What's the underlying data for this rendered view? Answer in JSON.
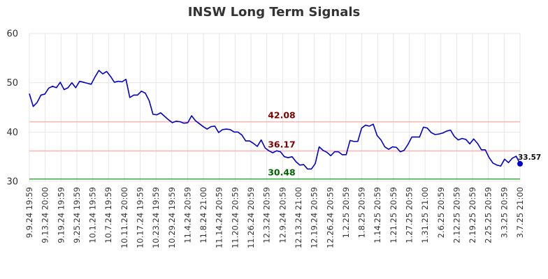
{
  "chart_data": {
    "type": "line",
    "title": "INSW Long Term Signals",
    "xlabel": "",
    "ylabel": "",
    "ylim": [
      30,
      60
    ],
    "yticks": [
      30,
      40,
      50,
      60
    ],
    "grid": true,
    "xtick_labels": [
      "9.9.24 19:59",
      "9.13.24 20:00",
      "9.19.24 19:59",
      "9.25.24 19:59",
      "10.1.24 19:59",
      "10.7.24 19:59",
      "10.11.24 20:00",
      "10.17.24 19:59",
      "10.23.24 19:59",
      "10.29.24 19:59",
      "11.4.24 20:59",
      "11.8.24 21:00",
      "11.14.24 20:59",
      "11.20.24 20:59",
      "11.26.24 20:59",
      "12.3.24 20:59",
      "12.9.24 20:59",
      "12.13.24 21:00",
      "12.19.24 20:59",
      "12.26.24 20:59",
      "1.2.25 20:59",
      "1.8.25 20:59",
      "1.14.25 20:59",
      "1.21.25 20:59",
      "1.27.25 20:59",
      "1.31.25 21:00",
      "2.6.25 20:59",
      "2.12.25 20:59",
      "2.19.25 20:59",
      "2.25.25 20:59",
      "3.3.25 20:59",
      "3.7.25 21:00"
    ],
    "series": [
      {
        "color": "#0000cc",
        "values": [
          47.8,
          45.2,
          46.0,
          47.5,
          47.7,
          48.9,
          49.3,
          49.0,
          50.1,
          48.6,
          49.0,
          50.0,
          49.0,
          50.3,
          50.1,
          49.9,
          49.7,
          51.2,
          52.5,
          51.8,
          52.3,
          51.3,
          50.1,
          50.3,
          50.2,
          50.7,
          47.0,
          47.5,
          47.5,
          48.3,
          47.9,
          46.4,
          43.6,
          43.5,
          43.9,
          43.2,
          42.5,
          41.9,
          42.2,
          42.1,
          41.8,
          41.9,
          43.3,
          42.3,
          41.7,
          41.1,
          40.6,
          41.1,
          41.2,
          39.9,
          40.5,
          40.6,
          40.5,
          40.0,
          40.0,
          39.4,
          38.2,
          38.2,
          37.7,
          37.1,
          38.4,
          36.8,
          36.2,
          35.8,
          36.2,
          36.0,
          35.0,
          34.8,
          35.0,
          34.0,
          33.3,
          33.4,
          32.5,
          32.5,
          33.6,
          37.0,
          36.3,
          35.9,
          35.2,
          36.0,
          36.0,
          35.4,
          35.4,
          38.3,
          38.1,
          38.1,
          40.8,
          41.4,
          41.2,
          41.6,
          39.3,
          38.4,
          37.0,
          36.5,
          37.0,
          36.9,
          36.0,
          36.3,
          37.5,
          39.0,
          39.0,
          39.0,
          41.0,
          40.8,
          39.9,
          39.5,
          39.6,
          39.8,
          40.2,
          40.4,
          39.1,
          38.4,
          38.7,
          38.5,
          37.6,
          38.6,
          37.7,
          36.4,
          36.4,
          34.8,
          33.7,
          33.3,
          33.1,
          34.5,
          33.8,
          34.7,
          35.1,
          33.57
        ]
      }
    ],
    "hlines": [
      {
        "value": 42.08,
        "label": "42.08",
        "color": "#ffb3b3",
        "label_color": "#800000"
      },
      {
        "value": 36.17,
        "label": "36.17",
        "color": "#ffb3b3",
        "label_color": "#800000"
      },
      {
        "value": 30.48,
        "label": "30.48",
        "color": "#33aa33",
        "label_color": "#006400"
      }
    ],
    "last_value": 33.57,
    "last_value_label": "33.57"
  }
}
